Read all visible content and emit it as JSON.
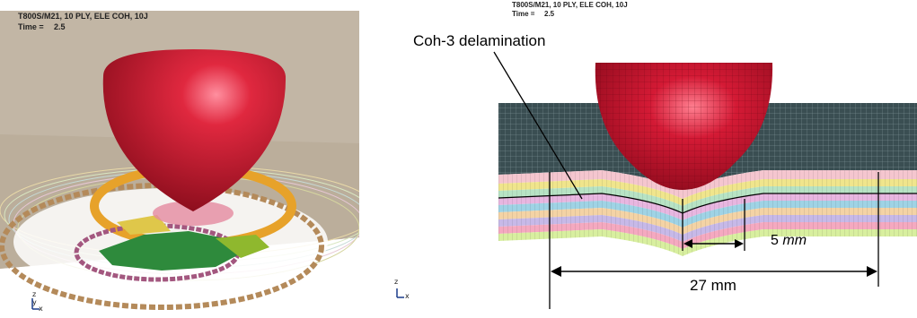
{
  "left_view": {
    "title": "T800S/M21, 10 PLY, ELE COH, 10J",
    "time_label": "Time =",
    "time_value": "2.5",
    "triad": {
      "z": "z",
      "y": "y",
      "x": "x"
    }
  },
  "right_view": {
    "title": "T800S/M21, 10 PLY, ELE COH, 10J",
    "time_label": "Time =",
    "time_value": "2.5",
    "annotation": "Coh-3 delamination",
    "inner_dimension": {
      "value": "5",
      "unit": "mm"
    },
    "outer_dimension": "27 mm",
    "triad": {
      "z": "z",
      "x": "x"
    }
  },
  "colors": {
    "background_left": "#c0b3a0",
    "impactor": "#d41a35",
    "mesh_dark": "#37494c",
    "ply_colors": [
      "#f5c6cf",
      "#f0e58c",
      "#b7e3c4",
      "#e8b6e0",
      "#9fd3e5",
      "#f4d3a5",
      "#c7b9e8",
      "#f5a9c0",
      "#d8ef9f",
      "#a7c4ea"
    ],
    "damage_green": "#2e8a3c",
    "damage_orange": "#e7a22a",
    "damage_purple": "#a3577f",
    "damage_tan": "#b48a5a"
  }
}
